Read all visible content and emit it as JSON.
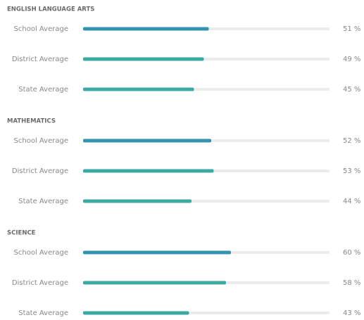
{
  "chart_data": [
    {
      "type": "bar",
      "title": "ENGLISH LANGUAGE ARTS",
      "categories": [
        "School Average",
        "District Average",
        "State Average"
      ],
      "values": [
        51,
        49,
        45
      ],
      "value_labels": [
        "51 %",
        "49 %",
        "45 %"
      ],
      "xlim": [
        0,
        100
      ],
      "colors": [
        "#3493ad",
        "#3caaa3",
        "#3caaa3"
      ]
    },
    {
      "type": "bar",
      "title": "MATHEMATICS",
      "categories": [
        "School Average",
        "District Average",
        "State Average"
      ],
      "values": [
        52,
        53,
        44
      ],
      "value_labels": [
        "52 %",
        "53 %",
        "44 %"
      ],
      "xlim": [
        0,
        100
      ],
      "colors": [
        "#3493ad",
        "#3caaa3",
        "#3caaa3"
      ]
    },
    {
      "type": "bar",
      "title": "SCIENCE",
      "categories": [
        "School Average",
        "District Average",
        "State Average"
      ],
      "values": [
        60,
        58,
        43
      ],
      "value_labels": [
        "60 %",
        "58 %",
        "43 %"
      ],
      "xlim": [
        0,
        100
      ],
      "colors": [
        "#3493ad",
        "#3caaa3",
        "#3caaa3"
      ]
    }
  ]
}
